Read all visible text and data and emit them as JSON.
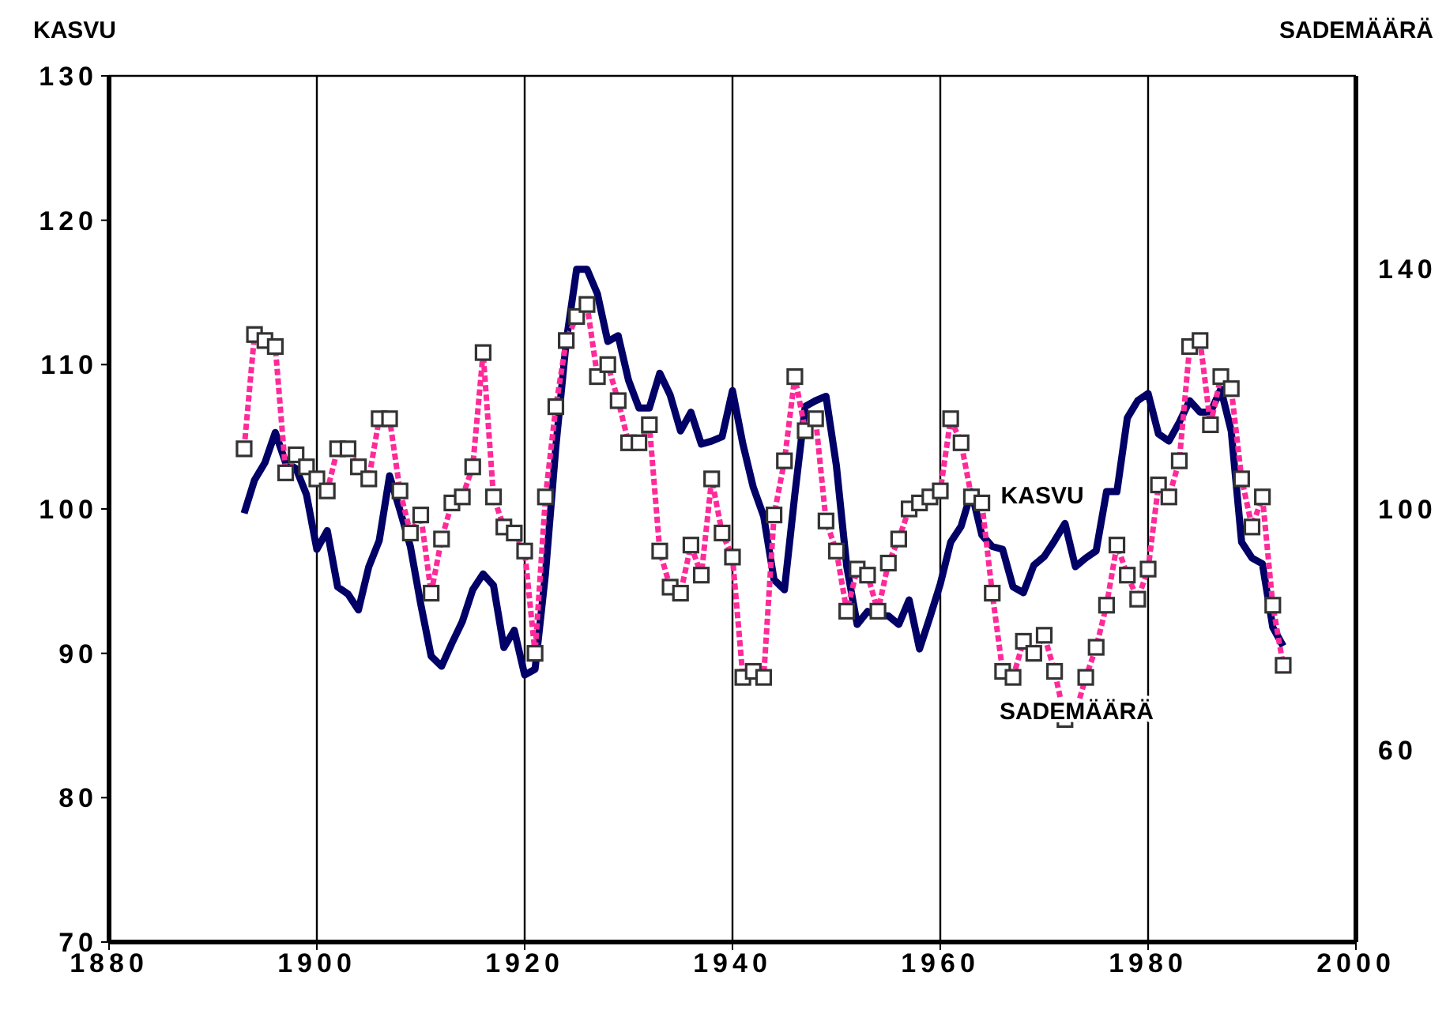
{
  "chart_data": {
    "type": "line",
    "ylabel": "KASVU",
    "y2label": "SADEMÄÄRÄ",
    "x": [
      1893,
      1894,
      1895,
      1896,
      1897,
      1898,
      1899,
      1900,
      1901,
      1902,
      1903,
      1904,
      1905,
      1906,
      1907,
      1908,
      1909,
      1910,
      1911,
      1912,
      1913,
      1914,
      1915,
      1916,
      1917,
      1918,
      1919,
      1920,
      1921,
      1922,
      1923,
      1924,
      1925,
      1926,
      1927,
      1928,
      1929,
      1930,
      1931,
      1932,
      1933,
      1934,
      1935,
      1936,
      1937,
      1938,
      1939,
      1940,
      1941,
      1942,
      1943,
      1944,
      1945,
      1946,
      1947,
      1948,
      1949,
      1950,
      1951,
      1952,
      1953,
      1954,
      1955,
      1956,
      1957,
      1958,
      1959,
      1960,
      1961,
      1962,
      1963,
      1964,
      1965,
      1966,
      1967,
      1968,
      1969,
      1970,
      1971,
      1972,
      1973,
      1974,
      1975,
      1976,
      1977,
      1978,
      1979,
      1980,
      1981,
      1982,
      1983,
      1984,
      1985,
      1986,
      1987,
      1988,
      1989,
      1990,
      1991,
      1992,
      1993
    ],
    "series": [
      {
        "name": "KASVU",
        "color": "#000066",
        "marker": "none",
        "line_style": "solid",
        "values": [
          99.7,
          102,
          103.2,
          105.3,
          103.2,
          102.8,
          101,
          97.2,
          98.5,
          94.6,
          94.1,
          93,
          96,
          97.8,
          102.3,
          99.9,
          97.4,
          93.4,
          89.8,
          89.1,
          90.7,
          92.2,
          94.4,
          95.5,
          94.7,
          90.4,
          91.6,
          88.5,
          88.9,
          95.5,
          104.3,
          111.6,
          116.6,
          116.6,
          114.9,
          111.6,
          112,
          108.9,
          107,
          107,
          109.4,
          107.9,
          105.4,
          106.7,
          104.5,
          104.7,
          105,
          108.2,
          104.5,
          101.5,
          99.5,
          95.1,
          94.4,
          101,
          107.1,
          107.5,
          107.8,
          103,
          96,
          92,
          92.9,
          92.6,
          92.6,
          92,
          93.7,
          90.3,
          92.5,
          94.8,
          97.7,
          98.8,
          101.2,
          98.2,
          97.4,
          97.2,
          94.6,
          94.2,
          96.1,
          96.7,
          97.8,
          99,
          96,
          96.6,
          97.1,
          101.2,
          101.2,
          106.3,
          107.5,
          108,
          105.2,
          104.7,
          106,
          107.5,
          106.7,
          106.7,
          108.3,
          105.4,
          97.7,
          96.6,
          96.2,
          91.8,
          90.5
        ]
      },
      {
        "name": "SADEMÄÄRÄ",
        "color": "#ff2a9a",
        "marker": "square",
        "line_style": "dotted",
        "axis": "y2",
        "values": [
          110,
          129,
          128,
          127,
          106,
          109,
          107,
          105,
          103,
          110,
          110,
          107,
          105,
          115,
          115,
          103,
          96,
          99,
          86,
          95,
          101,
          102,
          107,
          126,
          102,
          97,
          96,
          93,
          76,
          102,
          117,
          128,
          132,
          134,
          122,
          124,
          118,
          111,
          111,
          114,
          93,
          87,
          86,
          94,
          89,
          105,
          96,
          92,
          72,
          73,
          72,
          99,
          108,
          122,
          113,
          115,
          98,
          93,
          83,
          90,
          89,
          83,
          91,
          95,
          100,
          101,
          102,
          103,
          115,
          111,
          102,
          101,
          86,
          73,
          72,
          78,
          76,
          79,
          73,
          65,
          66,
          72,
          77,
          84,
          94,
          89,
          85,
          90,
          104,
          102,
          108,
          127,
          128,
          114,
          122,
          120,
          105,
          97,
          102,
          84,
          74
        ]
      }
    ],
    "xlim": [
      1880,
      2000
    ],
    "xticks": [
      1880,
      1900,
      1920,
      1940,
      1960,
      1980,
      2000
    ],
    "ylim": [
      70,
      130
    ],
    "yticks": [
      70,
      80,
      90,
      100,
      110,
      120,
      130
    ],
    "y2lim": [
      28,
      172
    ],
    "y2ticks": [
      60,
      100,
      140
    ],
    "grid": true
  }
}
